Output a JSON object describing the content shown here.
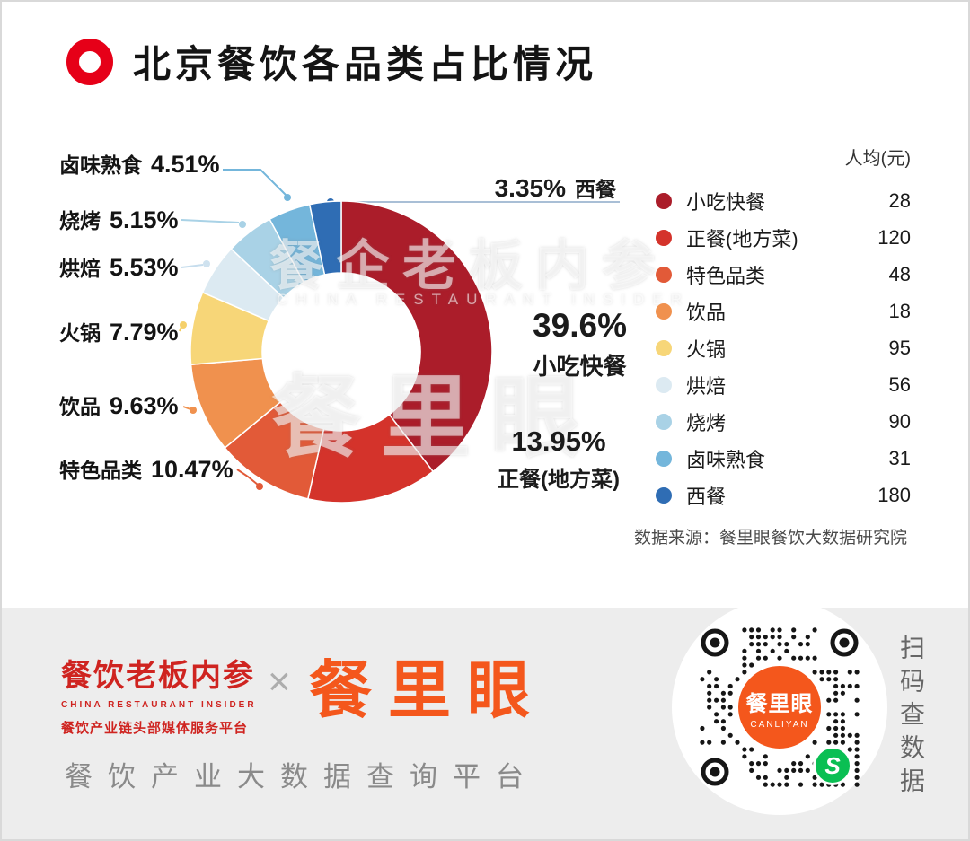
{
  "header": {
    "title": "北京餐饮各品类占比情况"
  },
  "chart_data": {
    "type": "pie",
    "donut": true,
    "title": "北京餐饮各品类占比情况",
    "start_angle_deg": 0,
    "direction": "clockwise",
    "unit_header": "人均(元)",
    "series": [
      {
        "name": "小吃快餐",
        "percent": 39.6,
        "per_capita": 28,
        "color": "#AB1D2A"
      },
      {
        "name": "正餐(地方菜)",
        "percent": 13.95,
        "per_capita": 120,
        "color": "#D4332B"
      },
      {
        "name": "特色品类",
        "percent": 10.47,
        "per_capita": 48,
        "color": "#E25A38"
      },
      {
        "name": "饮品",
        "percent": 9.63,
        "per_capita": 18,
        "color": "#F0914E"
      },
      {
        "name": "火锅",
        "percent": 7.79,
        "per_capita": 95,
        "color": "#F7D678"
      },
      {
        "name": "烘焙",
        "percent": 5.53,
        "per_capita": 56,
        "color": "#DCEAF2"
      },
      {
        "name": "烧烤",
        "percent": 5.15,
        "per_capita": 90,
        "color": "#A9D2E6"
      },
      {
        "name": "卤味熟食",
        "percent": 4.51,
        "per_capita": 31,
        "color": "#74B6DB"
      },
      {
        "name": "西餐",
        "percent": 3.35,
        "per_capita": 180,
        "color": "#2F6DB4"
      }
    ],
    "source": "数据来源：餐里眼餐饮大数据研究院"
  },
  "labels": {
    "left": [
      {
        "name": "卤味熟食",
        "pct": "4.51%"
      },
      {
        "name": "烧烤",
        "pct": "5.15%"
      },
      {
        "name": "烘焙",
        "pct": "5.53%"
      },
      {
        "name": "火锅",
        "pct": "7.79%"
      },
      {
        "name": "饮品",
        "pct": "9.63%"
      },
      {
        "name": "特色品类",
        "pct": "10.47%"
      }
    ],
    "right": [
      {
        "pct": "3.35%",
        "name": "西餐"
      },
      {
        "pct": "39.6%",
        "name": "小吃快餐"
      },
      {
        "pct": "13.95%",
        "name": "正餐(地方菜)"
      }
    ]
  },
  "watermark": {
    "line1": "餐企老板内参",
    "line2": "CHINA RESTAURANT INSIDER",
    "line3": "餐里眼"
  },
  "footer": {
    "brand1_title": "餐饮老板内参",
    "brand1_subtitle": "CHINA RESTAURANT INSIDER",
    "brand1_tagline": "餐饮产业链头部媒体服务平台",
    "multiply": "×",
    "brand2_title": "餐里眼",
    "platform_tagline": "餐饮产业大数据查询平台",
    "qr_badge_title": "餐里眼",
    "qr_badge_subtitle": "CANLIYAN",
    "scan_hint": "扫码查数据"
  }
}
